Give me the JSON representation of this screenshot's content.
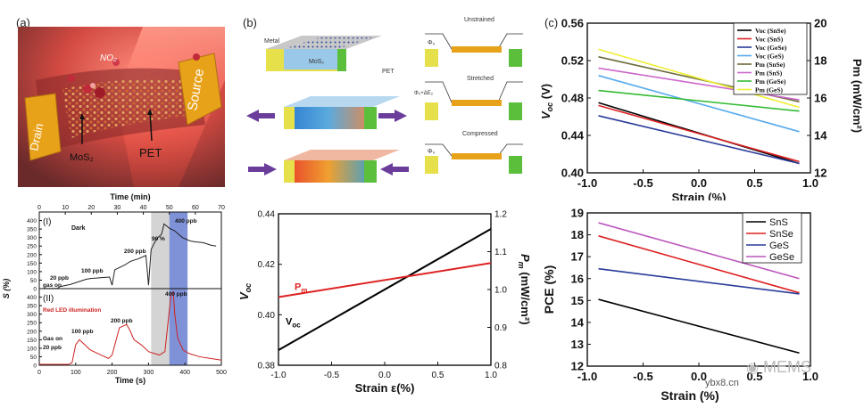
{
  "panel_labels": {
    "a": "(a)",
    "b": "(b)",
    "c": "(c)"
  },
  "panel_a": {
    "labels": {
      "no2": "NO₂",
      "source": "Source",
      "drain": "Drain",
      "mos2": "MoS₂",
      "pet": "PET"
    },
    "colors": {
      "background": "#b8403a",
      "glow": "#ff7a6a",
      "electrode": "#e8a21a",
      "flake": "#d9894a"
    }
  },
  "panel_b": {
    "labels": {
      "metal": "Metal",
      "mos2": "MoS₂",
      "pet": "PET",
      "unstrained": "Unstrained",
      "stretched": "Stretched",
      "compressed": "Compressed",
      "phi0": "Φ₀",
      "phi_plus": "Φ₀+ΔE₂",
      "phi_minus": "Φ₀"
    },
    "colors": {
      "metal": "#e6e04a",
      "metal_right": "#5bbf3c",
      "strain_arrow": "#6a3d9a"
    }
  },
  "chart_data": [
    {
      "id": "gas_response",
      "type": "line",
      "top_xlabel": "Time (min)",
      "top_xticks": [
        0,
        10,
        20,
        30,
        40,
        50,
        60,
        70
      ],
      "xlabel": "Time (s)",
      "xticks": [
        0,
        100,
        200,
        300,
        400,
        500
      ],
      "ylabel": "S (%)",
      "yticks": [
        0,
        50,
        100,
        150,
        200,
        250,
        300,
        350,
        400
      ],
      "sub_panels": [
        {
          "label": "(I)",
          "condition": "Dark",
          "color": "#222222",
          "annotations": [
            "20 ppb",
            "100 ppb",
            "200 ppb",
            "400 ppb",
            "90 %",
            "gas on"
          ],
          "time_min": [
            0,
            7,
            8,
            9,
            12,
            15,
            18,
            20,
            22,
            24,
            27,
            28,
            29,
            31,
            33,
            35,
            38,
            41,
            42,
            43,
            45,
            47,
            48,
            50,
            52,
            55,
            58,
            60,
            63,
            66,
            68
          ],
          "values": [
            0,
            2,
            12,
            15,
            25,
            40,
            55,
            60,
            62,
            65,
            68,
            20,
            110,
            125,
            140,
            160,
            175,
            195,
            20,
            230,
            290,
            320,
            380,
            355,
            340,
            300,
            280,
            275,
            270,
            255,
            250
          ]
        },
        {
          "label": "(II)",
          "condition": "Red LED illumination",
          "color": "#cc2222",
          "annotations": [
            "Gas on",
            "20 ppb",
            "100 ppb",
            "200 ppb",
            "400 ppb"
          ],
          "time_s": [
            0,
            80,
            90,
            100,
            110,
            120,
            140,
            170,
            190,
            200,
            220,
            240,
            250,
            260,
            280,
            300,
            330,
            345,
            355,
            362,
            368,
            372,
            380,
            395,
            410,
            440,
            470,
            500
          ],
          "values": [
            5,
            5,
            15,
            120,
            150,
            130,
            90,
            60,
            40,
            60,
            220,
            240,
            200,
            150,
            120,
            80,
            60,
            80,
            280,
            420,
            430,
            300,
            160,
            90,
            70,
            50,
            40,
            30
          ]
        }
      ],
      "shaded_regions": [
        {
          "from_min": 43,
          "to_min": 50,
          "color": "#cccccc"
        },
        {
          "from_min": 50,
          "to_min": 57,
          "color": "#6a7fd0"
        }
      ]
    },
    {
      "id": "strain_voc_pm",
      "type": "line",
      "xlabel": "Strain ε(%)",
      "ylabel": "Vₒ₄",
      "ylabel_main": "V",
      "ylabel_sub": "oc",
      "y2label_main": "P",
      "y2label_sub": "m",
      "y2label_unit": "(mW/cm²)",
      "xlim": [
        -1.0,
        1.0
      ],
      "xticks": [
        -1.0,
        -0.5,
        0.0,
        0.5,
        1.0
      ],
      "ylim": [
        0.38,
        0.44
      ],
      "yticks": [
        0.38,
        0.4,
        0.42,
        0.44
      ],
      "y2lim": [
        0.8,
        1.2
      ],
      "y2ticks": [
        0.8,
        0.9,
        1.0,
        1.1,
        1.2
      ],
      "series": [
        {
          "name": "Vₒ₄",
          "label_main": "V",
          "label_sub": "oc",
          "axis": "left",
          "color": "#000000",
          "x": [
            -1.0,
            1.0
          ],
          "values": [
            0.386,
            0.434
          ]
        },
        {
          "name": "Pₘ",
          "label_main": "P",
          "label_sub": "m",
          "axis": "right",
          "color": "#dd2222",
          "x": [
            -1.0,
            1.0
          ],
          "values": [
            0.98,
            1.07
          ]
        }
      ]
    },
    {
      "id": "voc_pm_materials",
      "type": "line",
      "xlabel": "Strain (%)",
      "ylabel_main": "V",
      "ylabel_sub": "oc",
      "ylabel_unit": "(V)",
      "y2label": "Pm (mW/cm²)",
      "xlim": [
        -1.0,
        1.0
      ],
      "xticks": [
        -1.0,
        -0.5,
        0.0,
        0.5,
        1.0
      ],
      "ylim": [
        0.4,
        0.56
      ],
      "yticks": [
        0.4,
        0.44,
        0.48,
        0.52,
        0.56
      ],
      "y2lim": [
        12,
        20
      ],
      "y2ticks": [
        12,
        14,
        16,
        18,
        20
      ],
      "legend_position": "top-right",
      "series": [
        {
          "name": "Voc (SnSe)",
          "axis": "left",
          "color": "#000000",
          "x": [
            -0.9,
            0.9
          ],
          "values": [
            0.475,
            0.41
          ]
        },
        {
          "name": "Voc (SnS)",
          "axis": "left",
          "color": "#dd2222",
          "x": [
            -0.9,
            0.9
          ],
          "values": [
            0.472,
            0.412
          ]
        },
        {
          "name": "Voc (GeSe)",
          "axis": "left",
          "color": "#2a3a9a",
          "x": [
            -0.9,
            0.9
          ],
          "values": [
            0.461,
            0.41
          ]
        },
        {
          "name": "Voc (GeS)",
          "axis": "left",
          "color": "#55aaee",
          "x": [
            -0.9,
            0.9
          ],
          "values": [
            0.504,
            0.444
          ]
        },
        {
          "name": "Pm (SnSe)",
          "axis": "right",
          "color": "#6b6b3a",
          "x": [
            -0.9,
            0.9
          ],
          "values": [
            18.2,
            15.8
          ]
        },
        {
          "name": "Pm (SnS)",
          "axis": "right",
          "color": "#cc66cc",
          "x": [
            -0.9,
            0.9
          ],
          "values": [
            17.6,
            15.9
          ]
        },
        {
          "name": "Pm (GeSe)",
          "axis": "right",
          "color": "#33bb33",
          "x": [
            -0.9,
            0.9
          ],
          "values": [
            16.4,
            15.3
          ]
        },
        {
          "name": "Pm (GeS)",
          "axis": "right",
          "color": "#eeee33",
          "x": [
            -0.9,
            0.9
          ],
          "values": [
            18.6,
            15.5
          ]
        }
      ]
    },
    {
      "id": "pce_materials",
      "type": "line",
      "xlabel": "Strain (%)",
      "ylabel": "PCE (%)",
      "xlim": [
        -1.0,
        1.0
      ],
      "xticks": [
        -1.0,
        -0.5,
        0.0,
        0.5,
        1.0
      ],
      "ylim": [
        12,
        19
      ],
      "yticks": [
        12,
        13,
        14,
        15,
        16,
        17,
        18,
        19
      ],
      "legend_position": "top-right",
      "series": [
        {
          "name": "SnS",
          "color": "#000000",
          "x": [
            -0.9,
            0.9
          ],
          "values": [
            15.05,
            12.6
          ]
        },
        {
          "name": "SnSe",
          "color": "#dd2222",
          "x": [
            -0.9,
            0.9
          ],
          "values": [
            17.95,
            15.35
          ]
        },
        {
          "name": "GeS",
          "color": "#2a3a9a",
          "x": [
            -0.9,
            0.9
          ],
          "values": [
            16.45,
            15.3
          ]
        },
        {
          "name": "GeSe",
          "color": "#bb55bb",
          "x": [
            -0.9,
            0.9
          ],
          "values": [
            18.55,
            16.0
          ]
        }
      ]
    }
  ],
  "watermark": {
    "text": "MEMS",
    "site": "ybx8.cn"
  }
}
